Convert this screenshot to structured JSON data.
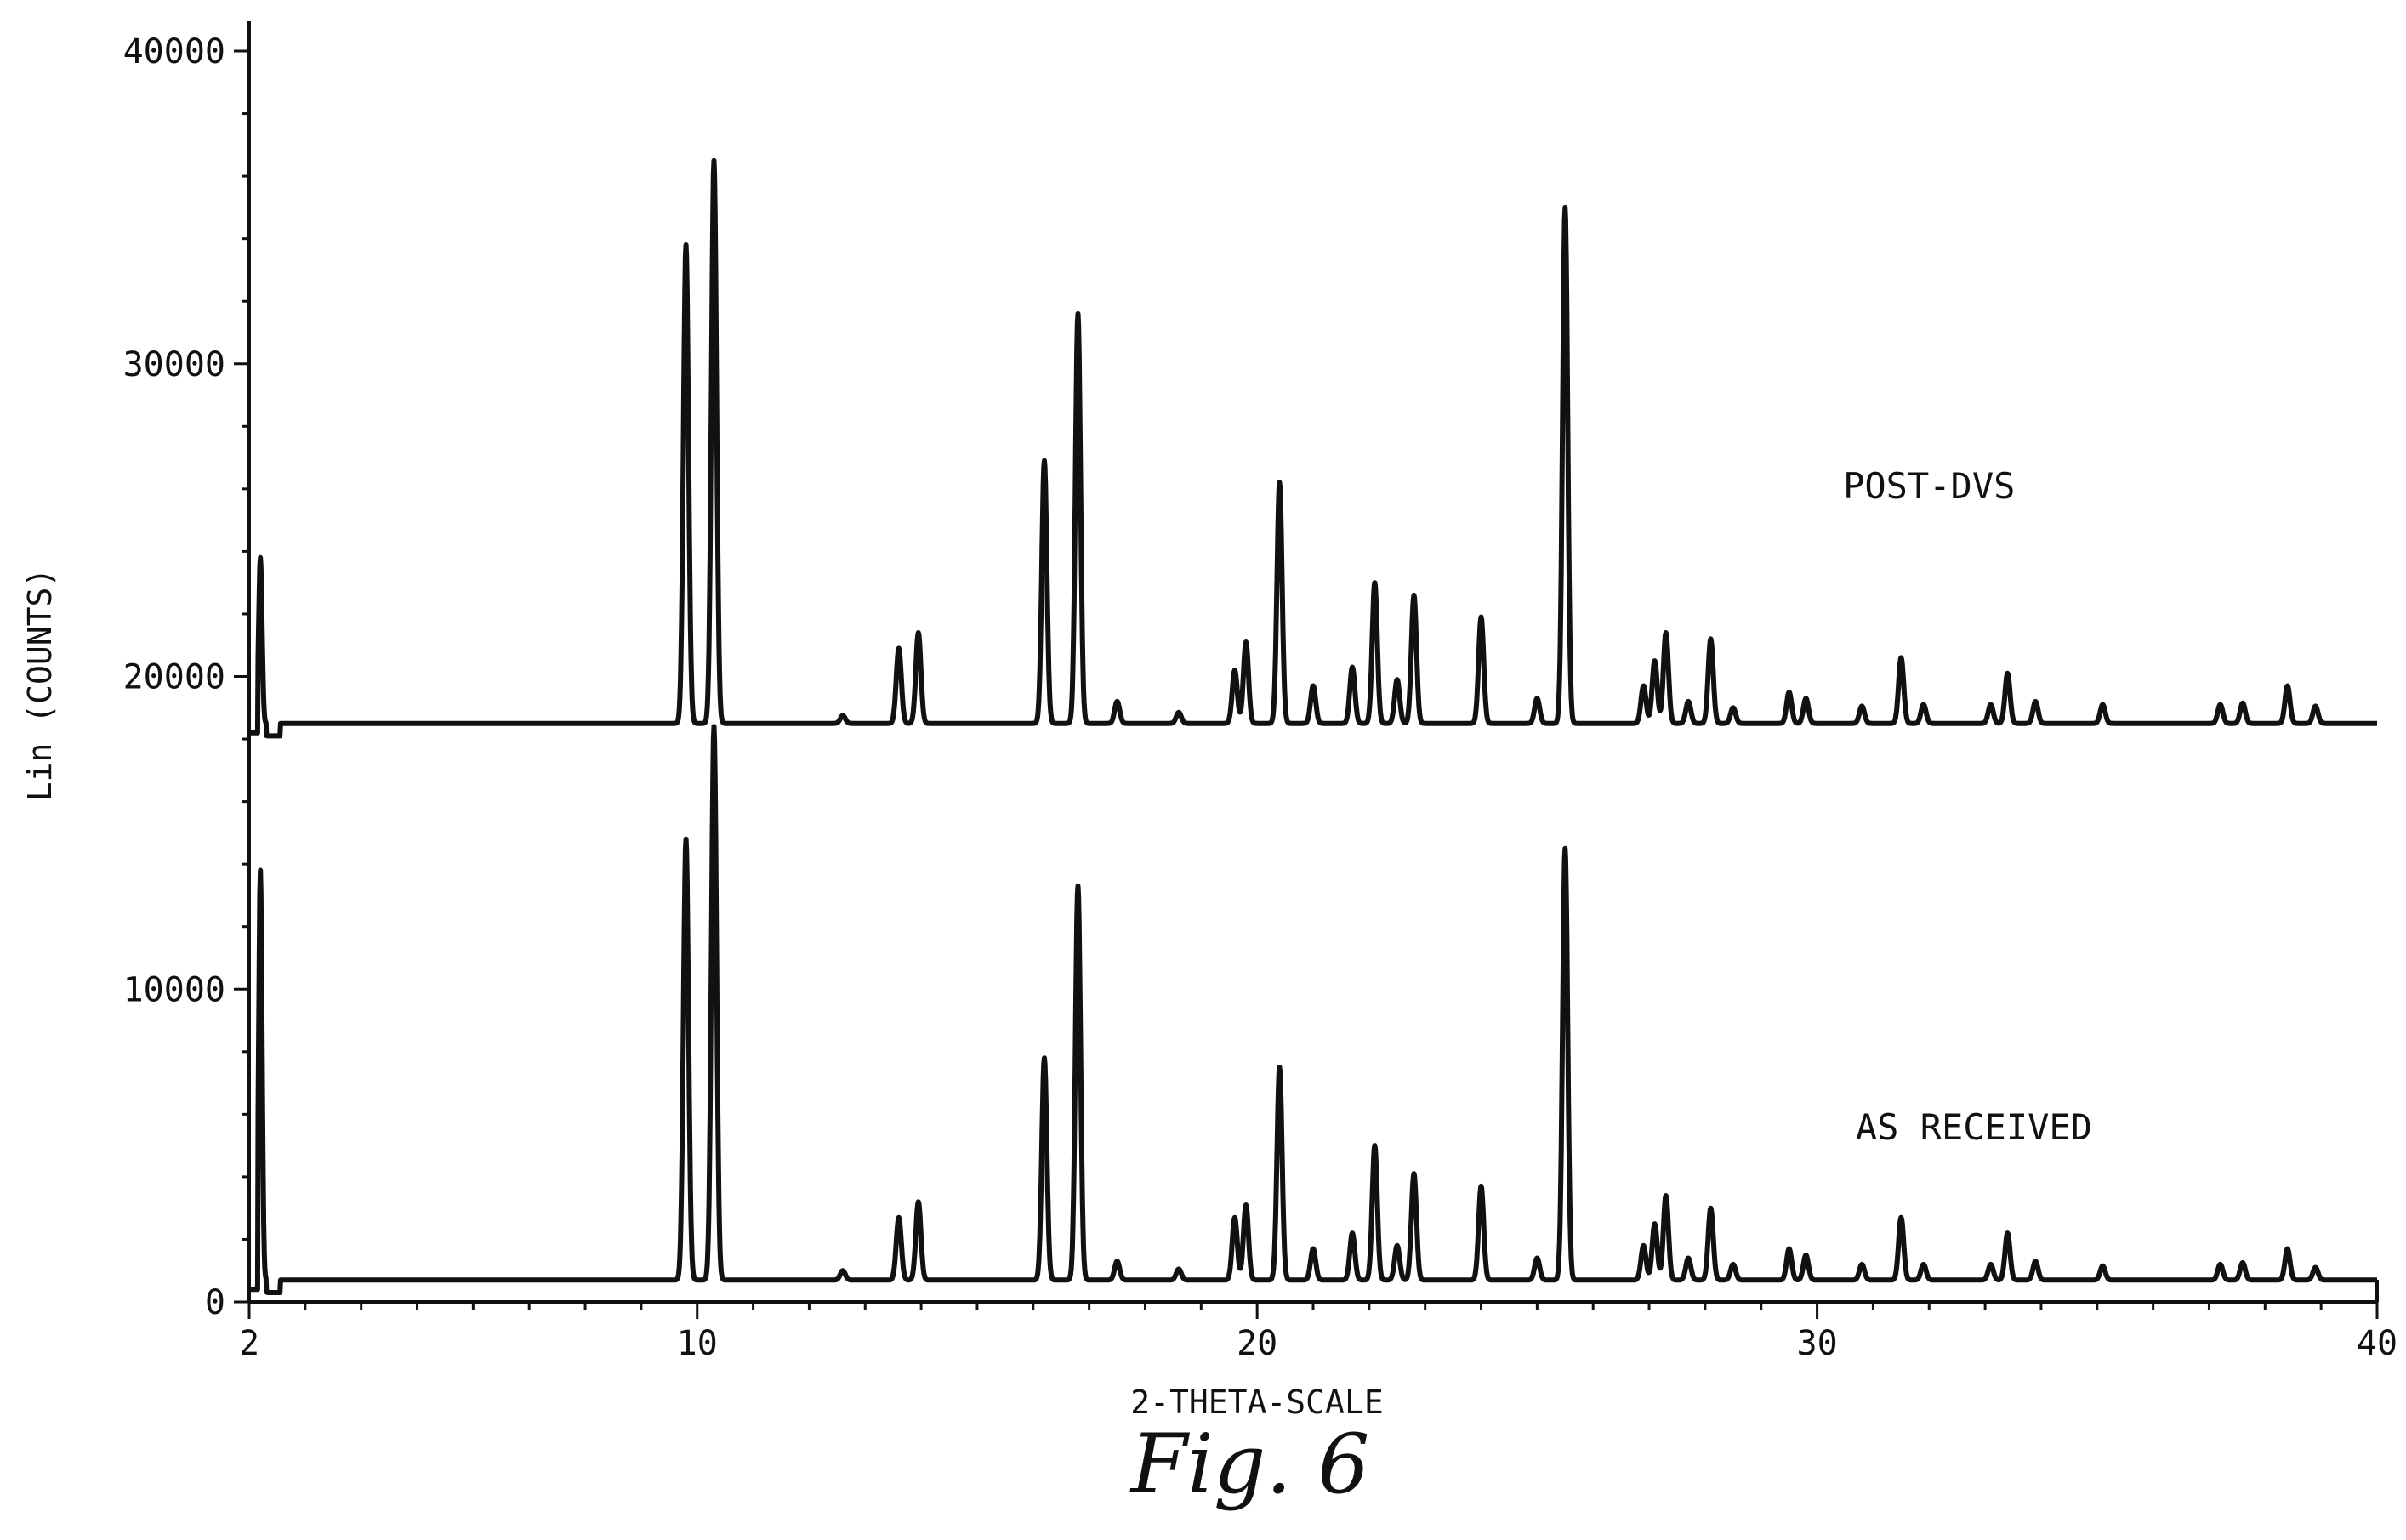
{
  "chart_data": {
    "type": "line",
    "title": "",
    "xlabel": "2-THETA-SCALE",
    "ylabel": "Lin (COUNTS)",
    "xlim": [
      2,
      40
    ],
    "ylim": [
      0,
      40000
    ],
    "x_ticks": [
      2,
      10,
      20,
      30,
      40
    ],
    "y_ticks": [
      0,
      10000,
      20000,
      30000,
      40000
    ],
    "grid": false,
    "legend": "none",
    "caption": "Fig. 6",
    "annotations": [
      {
        "text": "POST-DVS",
        "x": 32,
        "y": 25700
      },
      {
        "text": "AS RECEIVED",
        "x": 32.8,
        "y": 5200
      }
    ],
    "series": [
      {
        "name": "POST-DVS",
        "baseline": 18500,
        "peaks": [
          [
            2.2,
            5300
          ],
          [
            9.8,
            15300
          ],
          [
            10.3,
            18000
          ],
          [
            12.6,
            250
          ],
          [
            13.6,
            2400
          ],
          [
            13.95,
            2900
          ],
          [
            16.2,
            8400
          ],
          [
            16.8,
            13100
          ],
          [
            17.5,
            700
          ],
          [
            18.6,
            350
          ],
          [
            19.6,
            1700
          ],
          [
            19.8,
            2600
          ],
          [
            20.4,
            7700
          ],
          [
            21.0,
            1200
          ],
          [
            21.7,
            1800
          ],
          [
            22.1,
            4500
          ],
          [
            22.5,
            1400
          ],
          [
            22.8,
            4100
          ],
          [
            24.0,
            3400
          ],
          [
            25.0,
            800
          ],
          [
            25.5,
            16500
          ],
          [
            26.9,
            1200
          ],
          [
            27.1,
            2000
          ],
          [
            27.3,
            2900
          ],
          [
            27.7,
            700
          ],
          [
            28.1,
            2700
          ],
          [
            28.5,
            500
          ],
          [
            29.5,
            1000
          ],
          [
            29.8,
            800
          ],
          [
            30.8,
            550
          ],
          [
            31.5,
            2100
          ],
          [
            31.9,
            600
          ],
          [
            33.1,
            600
          ],
          [
            33.4,
            1600
          ],
          [
            33.9,
            700
          ],
          [
            35.1,
            600
          ],
          [
            37.2,
            600
          ],
          [
            37.6,
            650
          ],
          [
            38.4,
            1200
          ],
          [
            38.9,
            550
          ]
        ]
      },
      {
        "name": "AS RECEIVED",
        "baseline": 700,
        "peaks": [
          [
            2.2,
            13100
          ],
          [
            9.8,
            14100
          ],
          [
            10.3,
            17700
          ],
          [
            12.6,
            300
          ],
          [
            13.6,
            2000
          ],
          [
            13.95,
            2500
          ],
          [
            16.2,
            7100
          ],
          [
            16.8,
            12600
          ],
          [
            17.5,
            600
          ],
          [
            18.6,
            350
          ],
          [
            19.6,
            2000
          ],
          [
            19.8,
            2400
          ],
          [
            20.4,
            6800
          ],
          [
            21.0,
            1000
          ],
          [
            21.7,
            1500
          ],
          [
            22.1,
            4300
          ],
          [
            22.5,
            1100
          ],
          [
            22.8,
            3400
          ],
          [
            24.0,
            3000
          ],
          [
            25.0,
            700
          ],
          [
            25.5,
            13800
          ],
          [
            26.9,
            1100
          ],
          [
            27.1,
            1800
          ],
          [
            27.3,
            2700
          ],
          [
            27.7,
            700
          ],
          [
            28.1,
            2300
          ],
          [
            28.5,
            500
          ],
          [
            29.5,
            1000
          ],
          [
            29.8,
            800
          ],
          [
            30.8,
            500
          ],
          [
            31.5,
            2000
          ],
          [
            31.9,
            500
          ],
          [
            33.1,
            500
          ],
          [
            33.4,
            1500
          ],
          [
            33.9,
            600
          ],
          [
            35.1,
            450
          ],
          [
            37.2,
            500
          ],
          [
            37.6,
            550
          ],
          [
            38.4,
            1000
          ],
          [
            38.9,
            400
          ]
        ]
      }
    ]
  }
}
